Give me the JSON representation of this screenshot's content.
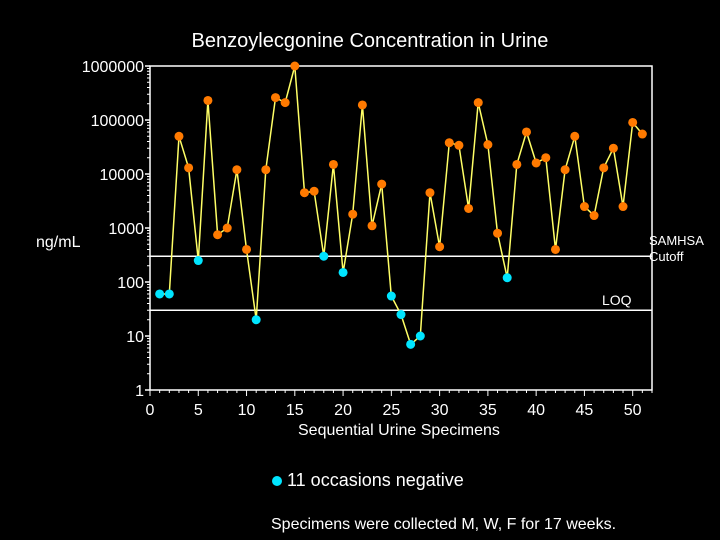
{
  "colors": {
    "background": "#000000",
    "line": "#ffff66",
    "positive": "#ff7a00",
    "negative": "#00e5ff",
    "threshold": "#ffffff",
    "text": "#ffffff"
  },
  "chart_data": {
    "type": "line",
    "title": "Benzoylecgonine Concentration in Urine",
    "xlabel": "Sequential Urine Specimens",
    "ylabel": "ng/mL",
    "y_scale": "log",
    "ylim": [
      1,
      1000000
    ],
    "xlim": [
      0,
      52
    ],
    "y_ticks": [
      "1",
      "10",
      "100",
      "1000",
      "10000",
      "100000",
      "1000000"
    ],
    "x_ticks": [
      "0",
      "5",
      "10",
      "15",
      "20",
      "25",
      "30",
      "35",
      "40",
      "45",
      "50"
    ],
    "grid": false,
    "thresholds": [
      {
        "label_lines": [
          "SAMHSA",
          "Cutoff"
        ],
        "value": 300
      },
      {
        "label_lines": [
          "LOQ"
        ],
        "value": 30
      }
    ],
    "series": [
      {
        "x": [
          1,
          2,
          3,
          4,
          5,
          6,
          7,
          8,
          9,
          10,
          11,
          12,
          13,
          14,
          15,
          16,
          17,
          18,
          19,
          20,
          21,
          22,
          23,
          24,
          25,
          26,
          27,
          28,
          29,
          30,
          31,
          32,
          33,
          34,
          35,
          36,
          37,
          38,
          39,
          40,
          41,
          42,
          43,
          44,
          45,
          46,
          47,
          48,
          49,
          50,
          51
        ],
        "y": [
          60,
          60,
          50000,
          13000,
          250,
          230000,
          750,
          1000,
          12000,
          400,
          20,
          12000,
          260000,
          210000,
          1000000,
          4500,
          4800,
          300,
          15000,
          150,
          1800,
          190000,
          1100,
          6500,
          55,
          25,
          7,
          10,
          4500,
          450,
          38000,
          34000,
          2300,
          210000,
          35000,
          800,
          120,
          15000,
          60000,
          16000,
          20000,
          400,
          12000,
          50000,
          2500,
          1700,
          13000,
          30000,
          2500,
          90000,
          55000
        ],
        "negative": [
          true,
          true,
          false,
          false,
          true,
          false,
          false,
          false,
          false,
          false,
          true,
          false,
          false,
          false,
          false,
          false,
          false,
          true,
          false,
          true,
          false,
          false,
          false,
          false,
          true,
          true,
          true,
          true,
          false,
          false,
          false,
          false,
          false,
          false,
          false,
          false,
          true,
          false,
          false,
          false,
          false,
          false,
          false,
          false,
          false,
          false,
          false,
          false,
          false,
          false,
          false
        ]
      }
    ],
    "legend": "11 occasions negative",
    "footnote": "Specimens were collected M, W, F for 17 weeks."
  }
}
